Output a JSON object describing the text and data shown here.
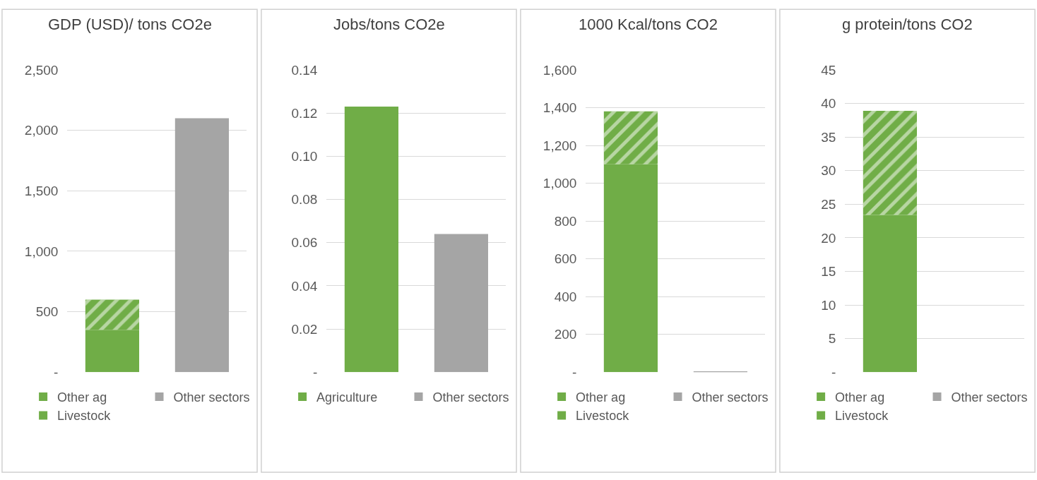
{
  "chart_data": [
    {
      "type": "bar",
      "title": "GDP (USD)/ tons CO2e",
      "categories": [
        null,
        null
      ],
      "stacked": true,
      "legend": "bottom",
      "grid": "y",
      "tick_labels": "y",
      "ylim": [
        0,
        2500
      ],
      "yticks": [
        {
          "value": 0,
          "label": "-"
        },
        500,
        {
          "value": 1000,
          "label": "1,000"
        },
        {
          "value": 1500,
          "label": "1,500"
        },
        {
          "value": 2000,
          "label": "2,000"
        },
        {
          "value": 2500,
          "label": "2,500"
        }
      ],
      "series": [
        {
          "name": "Other ag",
          "color": "#70ad47",
          "values": [
            350,
            null
          ]
        },
        {
          "name": "Livestock",
          "color": "#70ad47",
          "values": [
            250,
            null
          ]
        },
        {
          "name": "Other sectors",
          "color": "#a5a5a5",
          "values": [
            null,
            2100
          ]
        }
      ]
    },
    {
      "type": "bar",
      "title": "Jobs/tons CO2e",
      "categories": [
        null,
        null
      ],
      "stacked": true,
      "legend": "bottom",
      "grid": "y",
      "tick_labels": "y",
      "ylim": [
        0,
        0.14
      ],
      "yticks": [
        {
          "value": 0,
          "label": "-"
        },
        0.02,
        0.04,
        0.06,
        0.08,
        {
          "value": 0.1,
          "label": "0.10"
        },
        0.12,
        0.14
      ],
      "series": [
        {
          "name": "Agriculture",
          "color": "#70ad47",
          "values": [
            0.123,
            null
          ]
        },
        {
          "name": "Other sectors",
          "color": "#a5a5a5",
          "values": [
            null,
            0.064
          ]
        }
      ]
    },
    {
      "type": "bar",
      "title": "1000 Kcal/tons CO2",
      "categories": [
        null,
        null
      ],
      "stacked": true,
      "legend": "bottom",
      "grid": "y",
      "tick_labels": "y",
      "ylim": [
        0,
        1600
      ],
      "yticks": [
        {
          "value": 0,
          "label": "-"
        },
        200,
        400,
        600,
        800,
        {
          "value": 1000,
          "label": "1,000"
        },
        {
          "value": 1200,
          "label": "1,200"
        },
        {
          "value": 1400,
          "label": "1,400"
        },
        {
          "value": 1600,
          "label": "1,600"
        }
      ],
      "series": [
        {
          "name": "Other ag",
          "color": "#70ad47",
          "values": [
            1100,
            null
          ]
        },
        {
          "name": "Livestock",
          "color": "#70ad47",
          "values": [
            280,
            null
          ]
        },
        {
          "name": "Other sectors",
          "color": "#a5a5a5",
          "values": [
            null,
            3
          ]
        }
      ]
    },
    {
      "type": "bar",
      "title": "g protein/tons CO2",
      "categories": [
        null,
        null
      ],
      "stacked": true,
      "legend": "bottom",
      "grid": "y",
      "tick_labels": "y",
      "ylim": [
        0,
        45
      ],
      "yticks": [
        {
          "value": 0,
          "label": "-"
        },
        5,
        10,
        15,
        20,
        25,
        30,
        35,
        40,
        45
      ],
      "series": [
        {
          "name": "Other ag",
          "color": "#70ad47",
          "values": [
            23.4,
            null
          ]
        },
        {
          "name": "Livestock",
          "color": "#70ad47",
          "values": [
            15.5,
            null
          ]
        },
        {
          "name": "Other sectors",
          "color": "#a5a5a5",
          "values": [
            null,
            0
          ]
        }
      ]
    }
  ]
}
